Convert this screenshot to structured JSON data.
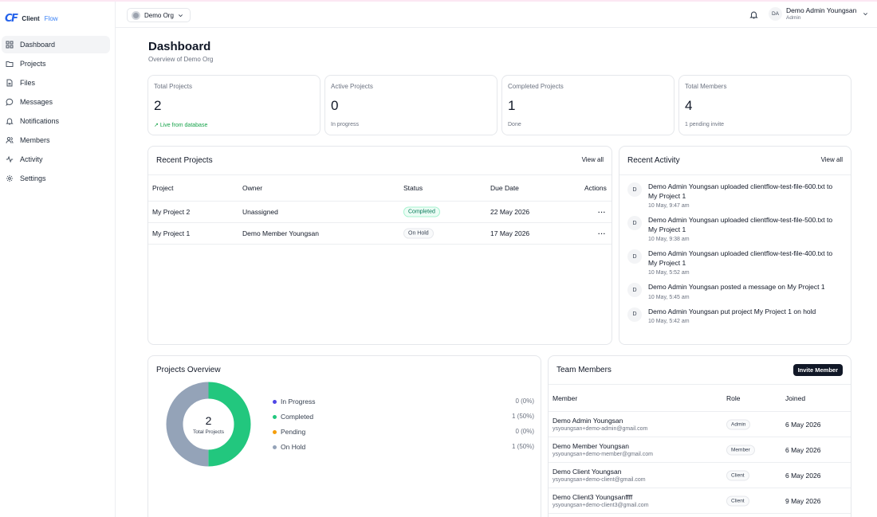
{
  "app": {
    "logo_mark": "CF",
    "logo_word_a": "Client",
    "logo_word_b": "Flow"
  },
  "sidebar": {
    "items": [
      {
        "label": "Dashboard",
        "icon": "grid-icon",
        "active": true
      },
      {
        "label": "Projects",
        "icon": "folder-icon"
      },
      {
        "label": "Files",
        "icon": "file-icon"
      },
      {
        "label": "Messages",
        "icon": "message-icon"
      },
      {
        "label": "Notifications",
        "icon": "bell-icon"
      },
      {
        "label": "Members",
        "icon": "users-icon"
      },
      {
        "label": "Activity",
        "icon": "activity-icon"
      },
      {
        "label": "Settings",
        "icon": "gear-icon"
      }
    ]
  },
  "topbar": {
    "org_name": "Demo Org",
    "user_initials": "DA",
    "user_name": "Demo Admin Youngsan",
    "user_role": "Admin"
  },
  "header": {
    "title": "Dashboard",
    "subtitle": "Overview of Demo Org"
  },
  "stats": [
    {
      "label": "Total Projects",
      "value": "2",
      "note": "Live from database",
      "note_style": "green"
    },
    {
      "label": "Active Projects",
      "value": "0",
      "note": "In progress"
    },
    {
      "label": "Completed Projects",
      "value": "1",
      "note": "Done"
    },
    {
      "label": "Total Members",
      "value": "4",
      "note": "1 pending invite"
    }
  ],
  "recent_projects": {
    "title": "Recent Projects",
    "view_all": "View all",
    "columns": [
      "Project",
      "Owner",
      "Status",
      "Due Date",
      "Actions"
    ],
    "rows": [
      {
        "project": "My Project 2",
        "owner": "Unassigned",
        "status": "Completed",
        "due": "22 May 2026",
        "actions": "···"
      },
      {
        "project": "My Project 1",
        "owner": "Demo Member Youngsan",
        "status": "On Hold",
        "due": "17 May 2026",
        "actions": "···"
      }
    ]
  },
  "recent_activity": {
    "title": "Recent Activity",
    "view_all": "View all",
    "items": [
      {
        "avatar": "D",
        "text": "Demo Admin Youngsan uploaded clientflow-test-file-600.txt to My Project 1",
        "time": "10 May, 9:47 am"
      },
      {
        "avatar": "D",
        "text": "Demo Admin Youngsan uploaded clientflow-test-file-500.txt to My Project 1",
        "time": "10 May, 9:38 am"
      },
      {
        "avatar": "D",
        "text": "Demo Admin Youngsan uploaded clientflow-test-file-400.txt to My Project 1",
        "time": "10 May, 5:52 am"
      },
      {
        "avatar": "D",
        "text": "Demo Admin Youngsan posted a message on My Project 1",
        "time": "10 May, 5:45 am"
      },
      {
        "avatar": "D",
        "text": "Demo Admin Youngsan put project My Project 1 on hold",
        "time": "10 May, 5:42 am"
      }
    ]
  },
  "projects_overview": {
    "title": "Projects Overview",
    "total_value": "2",
    "total_label": "Total Projects",
    "legend": [
      {
        "name": "In Progress",
        "value_text": "0 (0%)",
        "count": 0,
        "color": "#4f46e5"
      },
      {
        "name": "Completed",
        "value_text": "1 (50%)",
        "count": 1,
        "color": "#22c77e"
      },
      {
        "name": "Pending",
        "value_text": "0 (0%)",
        "count": 0,
        "color": "#f59e0b"
      },
      {
        "name": "On Hold",
        "value_text": "1 (50%)",
        "count": 1,
        "color": "#94a3b8"
      }
    ]
  },
  "team_members": {
    "title": "Team Members",
    "invite_label": "Invite Member",
    "columns": [
      "Member",
      "Role",
      "Joined"
    ],
    "rows": [
      {
        "name": "Demo Admin Youngsan",
        "email": "ysyoungsan+demo-admin@gmail.com",
        "role": "Admin",
        "joined": "6 May 2026"
      },
      {
        "name": "Demo Member Youngsan",
        "email": "ysyoungsan+demo-member@gmail.com",
        "role": "Member",
        "joined": "6 May 2026"
      },
      {
        "name": "Demo Client Youngsan",
        "email": "ysyoungsan+demo-client@gmail.com",
        "role": "Client",
        "joined": "6 May 2026"
      },
      {
        "name": "Demo Client3 Youngsanffff",
        "email": "ysyoungsan+demo-client3@gmail.com",
        "role": "Client",
        "joined": "9 May 2026"
      }
    ]
  }
}
